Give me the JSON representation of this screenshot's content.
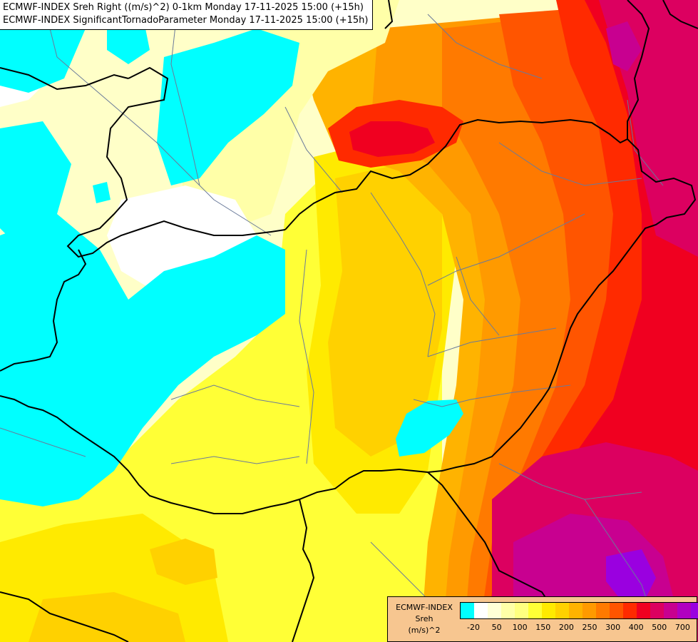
{
  "header": {
    "line1": "ECMWF-INDEX Sreh Right ((m/s)^2) 0-1km Monday 17-11-2025 15:00 (+15h)",
    "line2": "ECMWF-INDEX SignificantTornadoParameter Monday 17-11-2025 15:00 (+15h)"
  },
  "legend": {
    "source": "ECMWF-INDEX",
    "variable": "Sreh",
    "units": "(m/s)^2",
    "colors": [
      "#00ffff",
      "#ffffff",
      "#ffffd6",
      "#ffffa8",
      "#ffff80",
      "#ffff36",
      "#ffea00",
      "#ffd100",
      "#ffb300",
      "#ff9a00",
      "#ff7a00",
      "#ff5500",
      "#ff2a00",
      "#f00020",
      "#dc0060",
      "#c80090",
      "#b000c0",
      "#9a00e0",
      "#6a00c8",
      "#3800a8",
      "#100088"
    ],
    "tick_labels": [
      "-20",
      "50",
      "100",
      "150",
      "200",
      "250",
      "300",
      "400",
      "500",
      "700"
    ]
  },
  "map_colors": {
    "base": "#ffffc8",
    "cyan": "#00ffff",
    "white": "#ffffff",
    "pale_yellow": "#ffffa8",
    "yellow": "#ffff36",
    "gold": "#ffea00",
    "amber": "#ffd100",
    "orange_light": "#ffb300",
    "orange": "#ff9a00",
    "orange_dark": "#ff7a00",
    "red_orange": "#ff5500",
    "red": "#ff2a00",
    "crimson": "#f00020",
    "magenta": "#dc0060",
    "purple": "#c80090",
    "violet": "#9a00e0",
    "border_national": "#000000",
    "border_regional": "#6a7a9a"
  }
}
